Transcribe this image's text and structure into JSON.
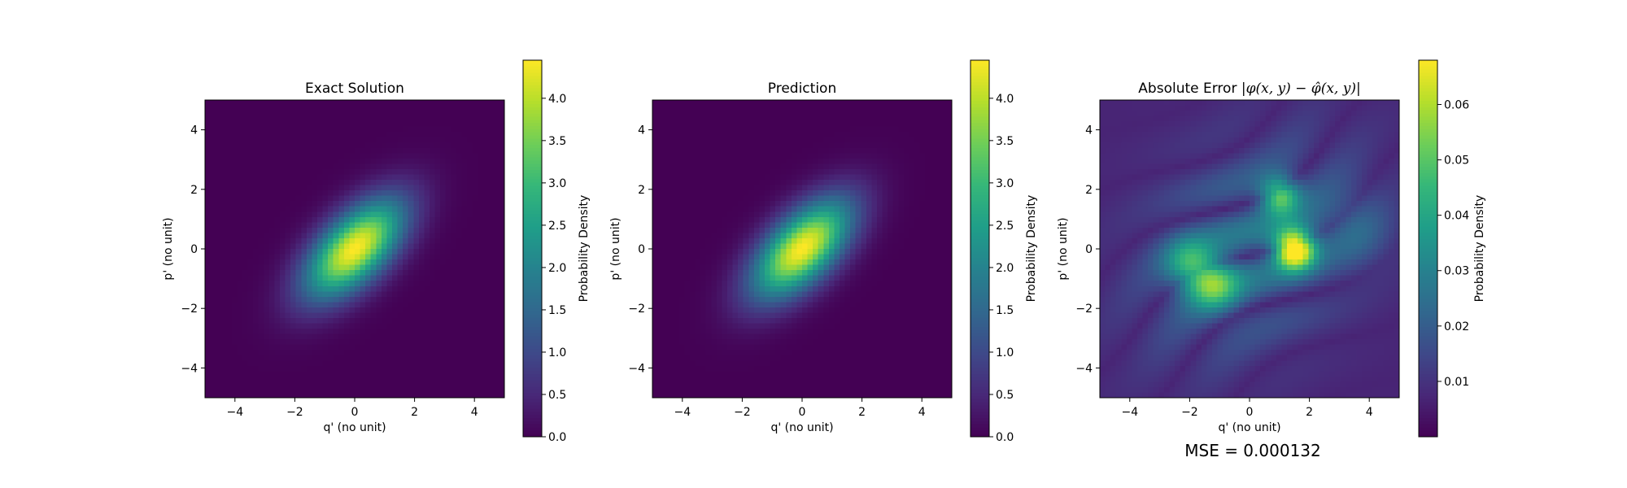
{
  "chart_data": [
    {
      "type": "heatmap",
      "title": "Exact Solution",
      "xlabel": "q' (no unit)",
      "ylabel": "p' (no unit)",
      "xlim": [
        -5,
        5
      ],
      "ylim": [
        -5,
        5
      ],
      "x_ticks": [
        -4,
        -2,
        0,
        2,
        4
      ],
      "y_ticks": [
        -4,
        -2,
        0,
        2,
        4
      ],
      "colormap": "viridis",
      "peak_value": 4.45,
      "peak_location": [
        0,
        0
      ],
      "orientation": "elongated along the diagonal from lower-left to upper-right",
      "colorbar": {
        "label": "Probability Density",
        "range": [
          0,
          4.45
        ],
        "ticks": [
          "0.0",
          "0.5",
          "1.0",
          "1.5",
          "2.0",
          "2.5",
          "3.0",
          "3.5",
          "4.0"
        ]
      }
    },
    {
      "type": "heatmap",
      "title": "Prediction",
      "xlabel": "q' (no unit)",
      "ylabel": "p' (no unit)",
      "xlim": [
        -5,
        5
      ],
      "ylim": [
        -5,
        5
      ],
      "x_ticks": [
        -4,
        -2,
        0,
        2,
        4
      ],
      "y_ticks": [
        -4,
        -2,
        0,
        2,
        4
      ],
      "colormap": "viridis",
      "peak_value": 4.45,
      "peak_location": [
        0,
        0
      ],
      "colorbar": {
        "label": "Probability Density",
        "range": [
          0,
          4.45
        ],
        "ticks": [
          "0.0",
          "0.5",
          "1.0",
          "1.5",
          "2.0",
          "2.5",
          "3.0",
          "3.5",
          "4.0"
        ]
      }
    },
    {
      "type": "heatmap",
      "title_text": "Absolute Error ",
      "title_formula": "|φ(x, y) − φ̂(x, y)|",
      "xlabel": "q' (no unit)",
      "ylabel": "p' (no unit)",
      "xlim": [
        -5,
        5
      ],
      "ylim": [
        -5,
        5
      ],
      "x_ticks": [
        -4,
        -2,
        0,
        2,
        4
      ],
      "y_ticks": [
        -4,
        -2,
        0,
        2,
        4
      ],
      "colormap": "viridis",
      "peak_value": 0.068,
      "peak_location": [
        1.5,
        0
      ],
      "secondary_maxima": [
        [
          1.0,
          1.8
        ],
        [
          -1.2,
          -1.2
        ],
        [
          -2.0,
          -0.5
        ]
      ],
      "colorbar": {
        "label": "Probability Density",
        "range": [
          0,
          0.068
        ],
        "ticks": [
          "0.01",
          "0.02",
          "0.03",
          "0.04",
          "0.05",
          "0.06"
        ]
      },
      "annotation": "MSE = 0.000132"
    }
  ],
  "colors": {
    "viridis": [
      "#440154",
      "#482878",
      "#3e4989",
      "#31688e",
      "#26828e",
      "#1f9e89",
      "#35b779",
      "#6ece58",
      "#b5de2b",
      "#fde725"
    ]
  }
}
